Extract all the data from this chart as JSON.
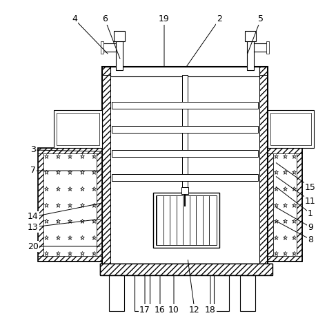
{
  "bg_color": "#ffffff",
  "line_color": "#000000",
  "figsize": [
    4.74,
    4.65
  ],
  "dpi": 100,
  "labels_data": [
    [
      "1",
      450,
      310,
      398,
      270
    ],
    [
      "2",
      318,
      28,
      268,
      100
    ],
    [
      "3",
      48,
      218,
      148,
      220
    ],
    [
      "4",
      108,
      28,
      158,
      80
    ],
    [
      "5",
      378,
      28,
      358,
      80
    ],
    [
      "6",
      152,
      28,
      175,
      88
    ],
    [
      "7",
      48,
      248,
      148,
      248
    ],
    [
      "8",
      450,
      348,
      398,
      320
    ],
    [
      "9",
      450,
      330,
      398,
      300
    ],
    [
      "10",
      252,
      450,
      252,
      398
    ],
    [
      "11",
      450,
      292,
      398,
      255
    ],
    [
      "12",
      282,
      450,
      272,
      375
    ],
    [
      "13",
      48,
      330,
      148,
      318
    ],
    [
      "14",
      48,
      315,
      148,
      295
    ],
    [
      "15",
      450,
      272,
      398,
      235
    ],
    [
      "16",
      232,
      450,
      232,
      398
    ],
    [
      "17",
      210,
      450,
      210,
      398
    ],
    [
      "18",
      305,
      450,
      305,
      398
    ],
    [
      "19",
      238,
      28,
      238,
      100
    ],
    [
      "20",
      48,
      358,
      148,
      358
    ]
  ]
}
